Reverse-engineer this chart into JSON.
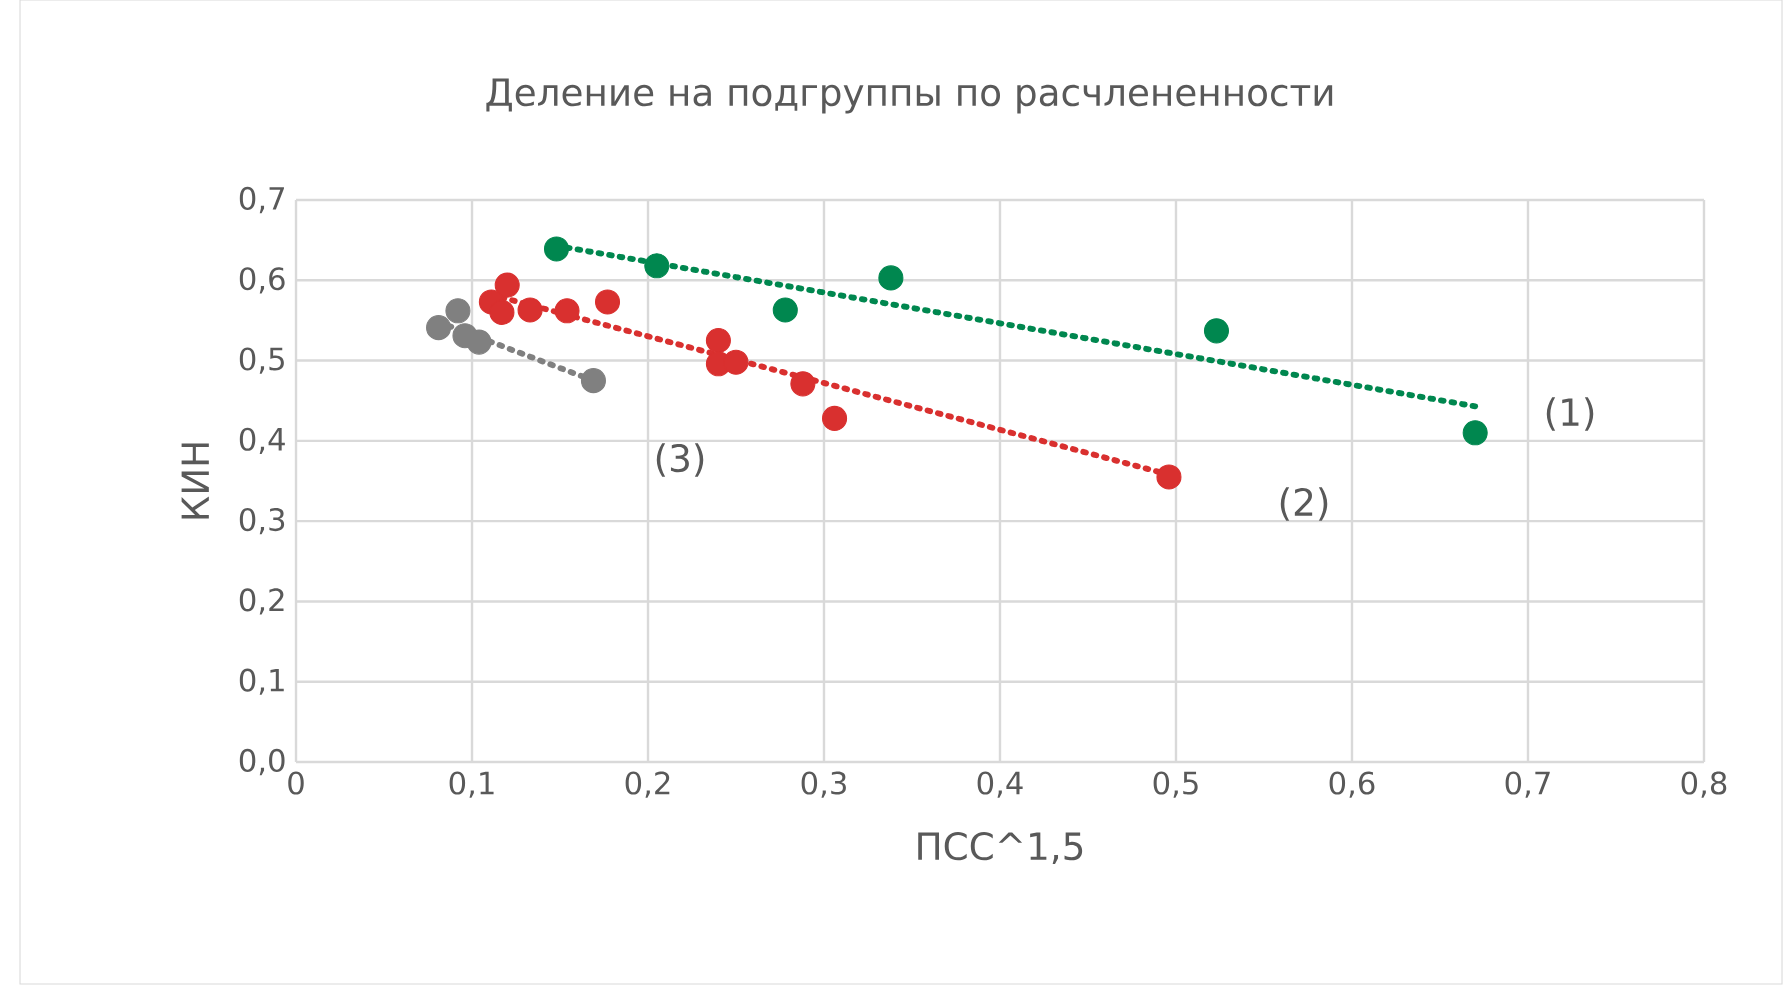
{
  "chart_data": {
    "type": "scatter",
    "title": "Деление на подгруппы по расчлененности",
    "xlabel": "ПСС^1,5",
    "ylabel": "КИН",
    "xlim": [
      0,
      0.8
    ],
    "ylim": [
      0,
      0.7
    ],
    "xticks": [
      {
        "value": 0,
        "label": "0"
      },
      {
        "value": 0.1,
        "label": "0,1"
      },
      {
        "value": 0.2,
        "label": "0,2"
      },
      {
        "value": 0.3,
        "label": "0,3"
      },
      {
        "value": 0.4,
        "label": "0,4"
      },
      {
        "value": 0.5,
        "label": "0,5"
      },
      {
        "value": 0.6,
        "label": "0,6"
      },
      {
        "value": 0.7,
        "label": "0,7"
      },
      {
        "value": 0.8,
        "label": "0,8"
      }
    ],
    "yticks": [
      {
        "value": 0,
        "label": "0,0"
      },
      {
        "value": 0.1,
        "label": "0,1"
      },
      {
        "value": 0.2,
        "label": "0,2"
      },
      {
        "value": 0.3,
        "label": "0,3"
      },
      {
        "value": 0.4,
        "label": "0,4"
      },
      {
        "value": 0.5,
        "label": "0,5"
      },
      {
        "value": 0.6,
        "label": "0,6"
      },
      {
        "value": 0.7,
        "label": "0,7"
      }
    ],
    "grid": true,
    "marker": "circle",
    "series": [
      {
        "type": "line",
        "color": "#00874f",
        "line_style": "dotted",
        "marker": "none",
        "x": [
          0.148,
          0.67
        ],
        "values": [
          0.643,
          0.443
        ]
      },
      {
        "type": "line",
        "color": "#d9302f",
        "line_style": "dotted",
        "marker": "none",
        "x": [
          0.111,
          0.496
        ],
        "values": [
          0.582,
          0.358
        ]
      },
      {
        "type": "line",
        "color": "#808080",
        "line_style": "dotted",
        "marker": "none",
        "x": [
          0.081,
          0.169
        ],
        "values": [
          0.548,
          0.475
        ]
      },
      {
        "color": "#00874f",
        "x": [
          0.148,
          0.205,
          0.278,
          0.338,
          0.523,
          0.67
        ],
        "values": [
          0.639,
          0.618,
          0.563,
          0.603,
          0.537,
          0.41
        ]
      },
      {
        "color": "#d9302f",
        "x": [
          0.12,
          0.111,
          0.117,
          0.133,
          0.154,
          0.177,
          0.24,
          0.24,
          0.25,
          0.288,
          0.306,
          0.496
        ],
        "values": [
          0.594,
          0.573,
          0.56,
          0.563,
          0.562,
          0.573,
          0.525,
          0.496,
          0.498,
          0.471,
          0.428,
          0.355
        ]
      },
      {
        "color": "#808080",
        "x": [
          0.081,
          0.092,
          0.096,
          0.104,
          0.169
        ],
        "values": [
          0.541,
          0.562,
          0.531,
          0.523,
          0.475
        ]
      }
    ],
    "annotations": [
      "(1)",
      "(2)",
      "(3)"
    ]
  }
}
